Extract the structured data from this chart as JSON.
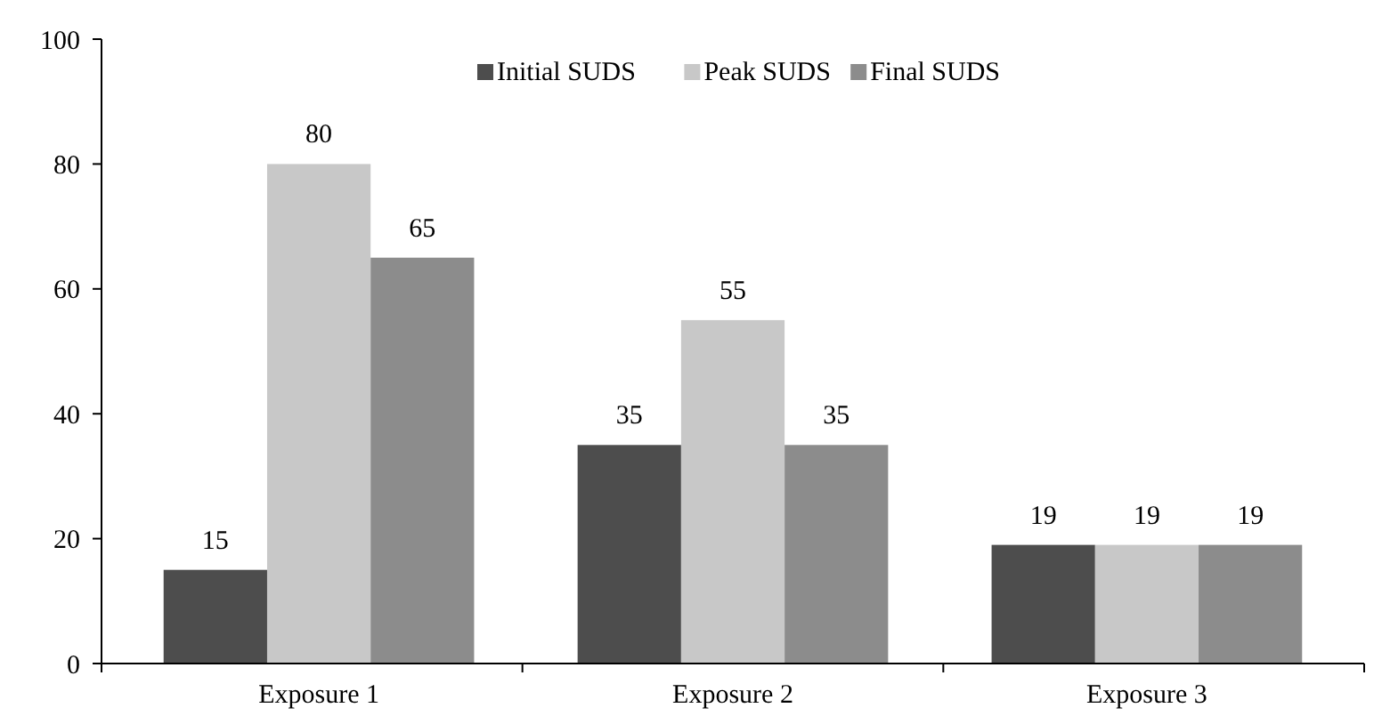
{
  "chart_data": {
    "type": "bar",
    "categories": [
      "Exposure 1",
      "Exposure 2",
      "Exposure 3"
    ],
    "series": [
      {
        "name": "Initial SUDS",
        "color": "#4d4d4d",
        "values": [
          15,
          35,
          19
        ]
      },
      {
        "name": "Peak SUDS",
        "color": "#c8c8c8",
        "values": [
          80,
          55,
          19
        ]
      },
      {
        "name": "Final SUDS",
        "color": "#8c8c8c",
        "values": [
          65,
          35,
          19
        ]
      }
    ],
    "ylim": [
      0,
      100
    ],
    "yticks": [
      0,
      20,
      40,
      60,
      80,
      100
    ],
    "data_labels": true,
    "legend": "top",
    "grid": false
  }
}
